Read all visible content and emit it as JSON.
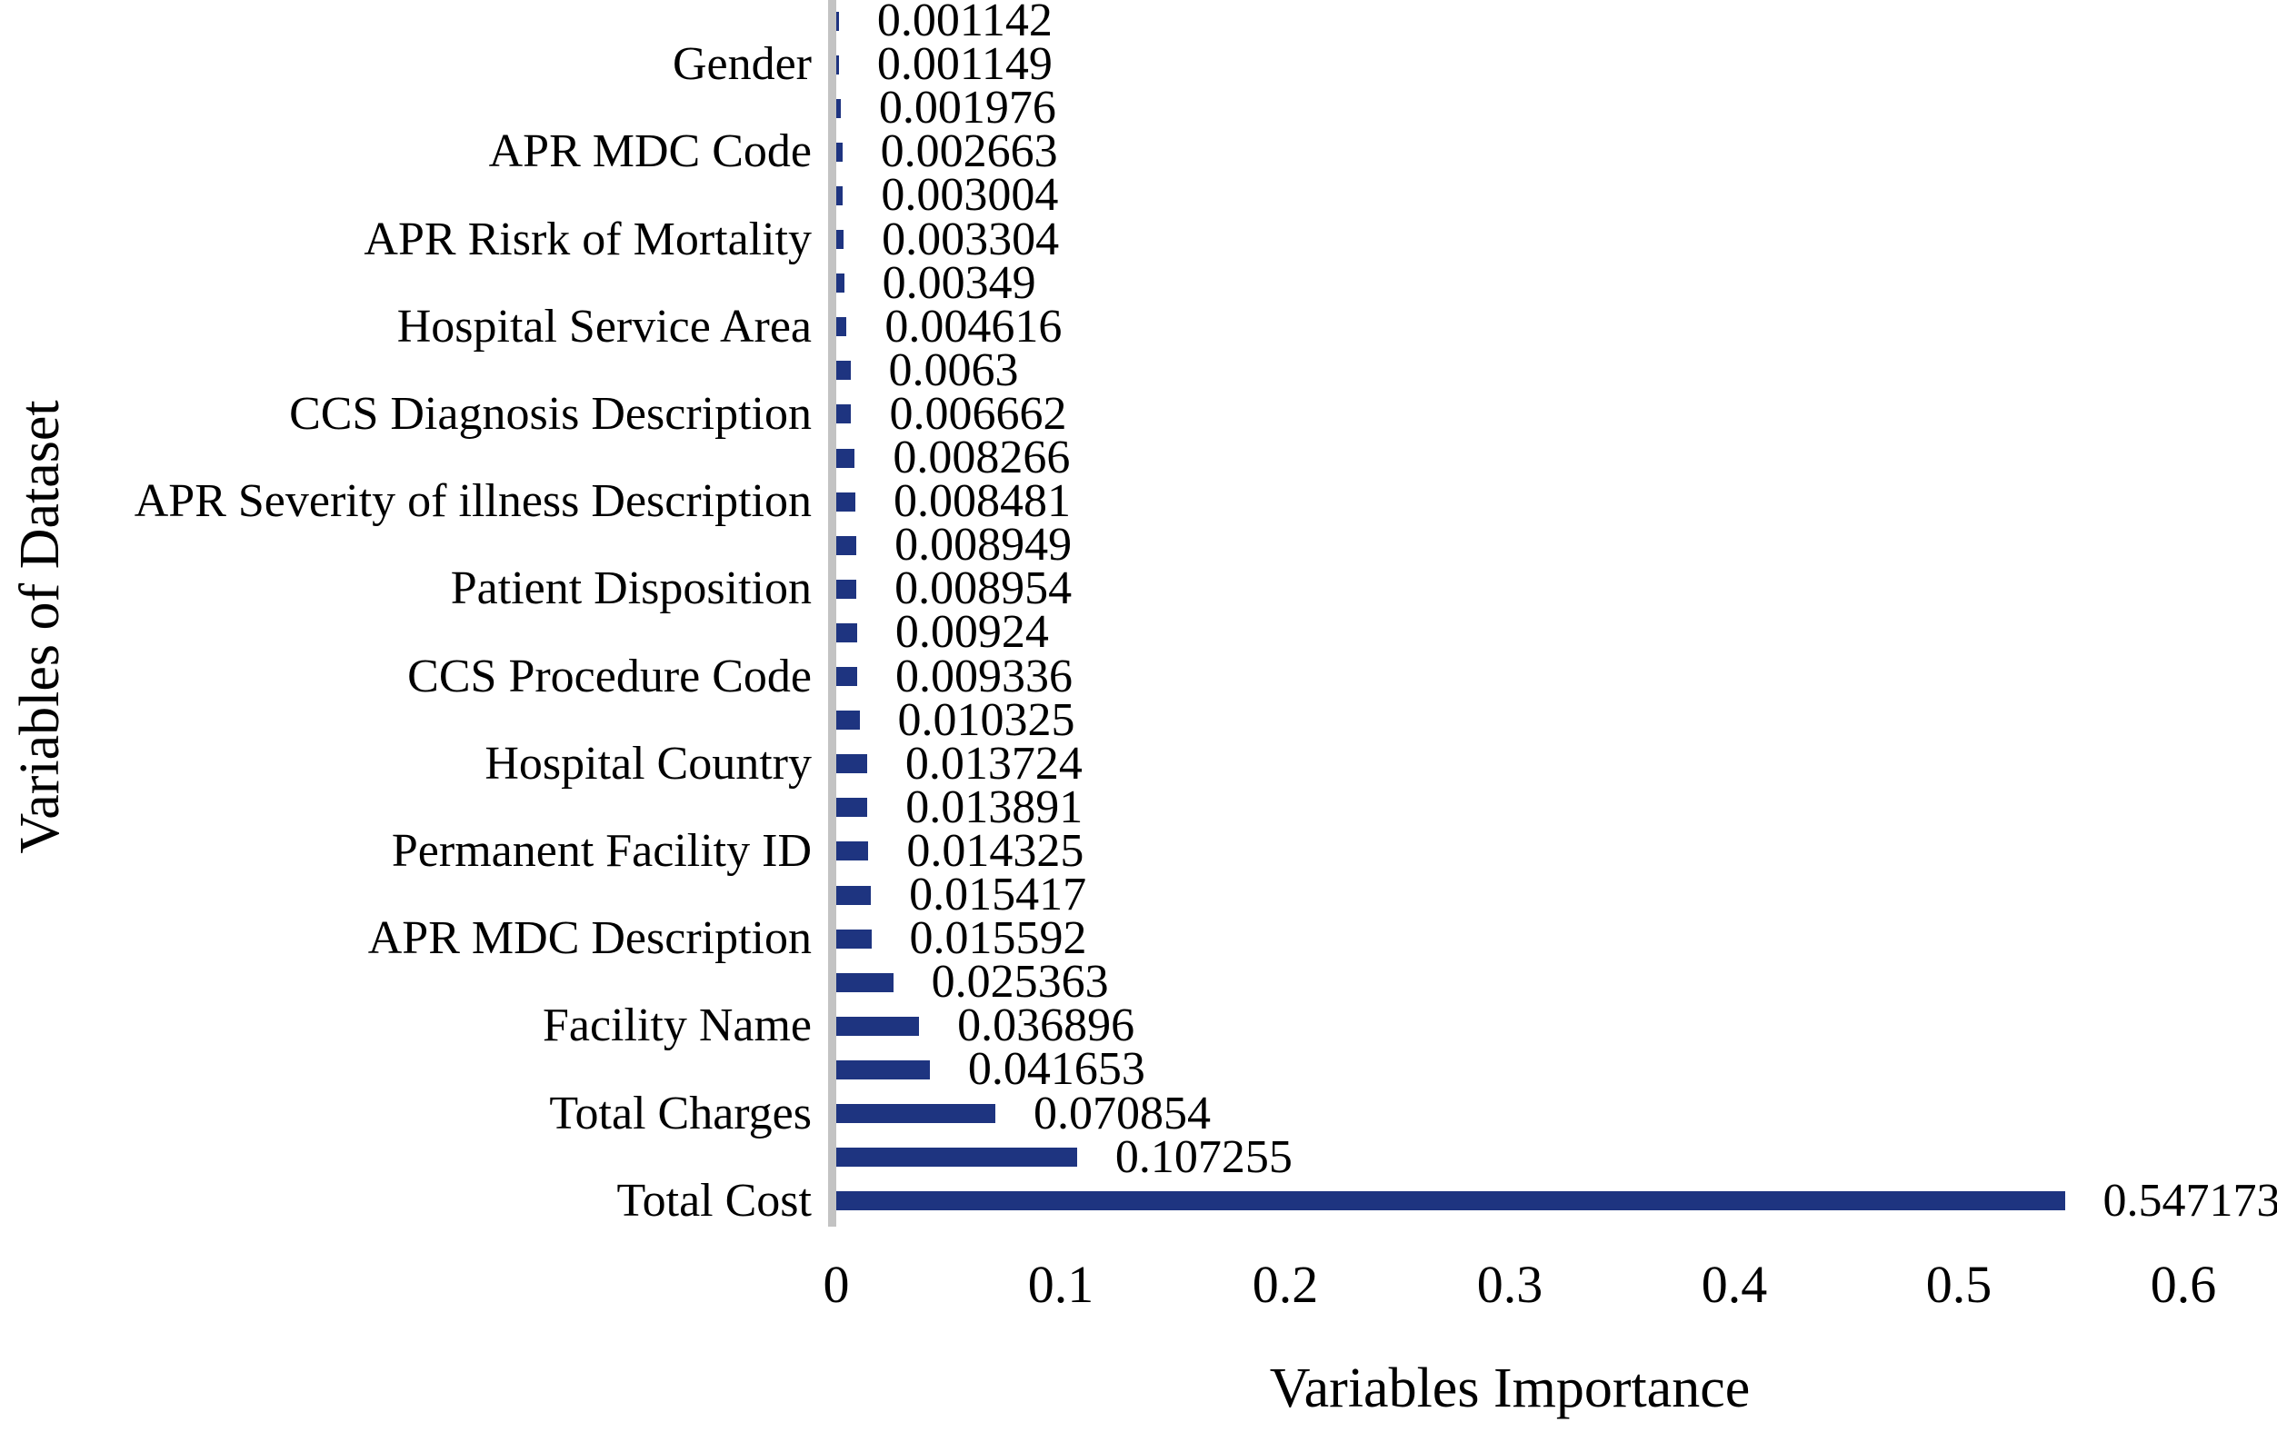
{
  "chart_data": {
    "type": "bar",
    "orientation": "horizontal",
    "title": "",
    "xlabel": "Variables Importance",
    "ylabel": "Variables of Dataset",
    "xlim": [
      0,
      0.6
    ],
    "grid": false,
    "legend": false,
    "bar_color": "#1e3480",
    "axis_line_color": "#c3c3c3",
    "x_ticks": [
      {
        "label": "0",
        "value": 0.0
      },
      {
        "label": "0.1",
        "value": 0.1
      },
      {
        "label": "0.2",
        "value": 0.2
      },
      {
        "label": "0.3",
        "value": 0.3
      },
      {
        "label": "0.4",
        "value": 0.4
      },
      {
        "label": "0.5",
        "value": 0.5
      },
      {
        "label": "0.6",
        "value": 0.6
      }
    ],
    "bars": [
      {
        "label": "",
        "value": 0.001142,
        "value_label": "0.001142"
      },
      {
        "label": "Gender",
        "value": 0.001149,
        "value_label": "0.001149"
      },
      {
        "label": "",
        "value": 0.001976,
        "value_label": "0.001976"
      },
      {
        "label": "APR MDC Code",
        "value": 0.002663,
        "value_label": "0.002663"
      },
      {
        "label": "",
        "value": 0.003004,
        "value_label": "0.003004"
      },
      {
        "label": "APR Risrk of Mortality",
        "value": 0.003304,
        "value_label": "0.003304"
      },
      {
        "label": "",
        "value": 0.00349,
        "value_label": "0.00349"
      },
      {
        "label": "Hospital Service Area",
        "value": 0.004616,
        "value_label": "0.004616"
      },
      {
        "label": "",
        "value": 0.0063,
        "value_label": "0.0063"
      },
      {
        "label": "CCS Diagnosis Description",
        "value": 0.006662,
        "value_label": "0.006662"
      },
      {
        "label": "",
        "value": 0.008266,
        "value_label": "0.008266"
      },
      {
        "label": "APR Severity of illness Description",
        "value": 0.008481,
        "value_label": "0.008481"
      },
      {
        "label": "",
        "value": 0.008949,
        "value_label": "0.008949"
      },
      {
        "label": "Patient Disposition",
        "value": 0.008954,
        "value_label": "0.008954"
      },
      {
        "label": "",
        "value": 0.00924,
        "value_label": "0.00924"
      },
      {
        "label": "CCS Procedure Code",
        "value": 0.009336,
        "value_label": "0.009336"
      },
      {
        "label": "",
        "value": 0.010325,
        "value_label": "0.010325"
      },
      {
        "label": "Hospital Country",
        "value": 0.013724,
        "value_label": "0.013724"
      },
      {
        "label": "",
        "value": 0.013891,
        "value_label": "0.013891"
      },
      {
        "label": "Permanent Facility ID",
        "value": 0.014325,
        "value_label": "0.014325"
      },
      {
        "label": "",
        "value": 0.015417,
        "value_label": "0.015417"
      },
      {
        "label": "APR MDC Description",
        "value": 0.015592,
        "value_label": "0.015592"
      },
      {
        "label": "",
        "value": 0.025363,
        "value_label": "0.025363"
      },
      {
        "label": "Facility Name",
        "value": 0.036896,
        "value_label": "0.036896"
      },
      {
        "label": "",
        "value": 0.041653,
        "value_label": "0.041653"
      },
      {
        "label": "Total Charges",
        "value": 0.070854,
        "value_label": "0.070854"
      },
      {
        "label": "",
        "value": 0.107255,
        "value_label": "0.107255"
      },
      {
        "label": "Total Cost",
        "value": 0.547173,
        "value_label": "0.547173"
      }
    ]
  }
}
